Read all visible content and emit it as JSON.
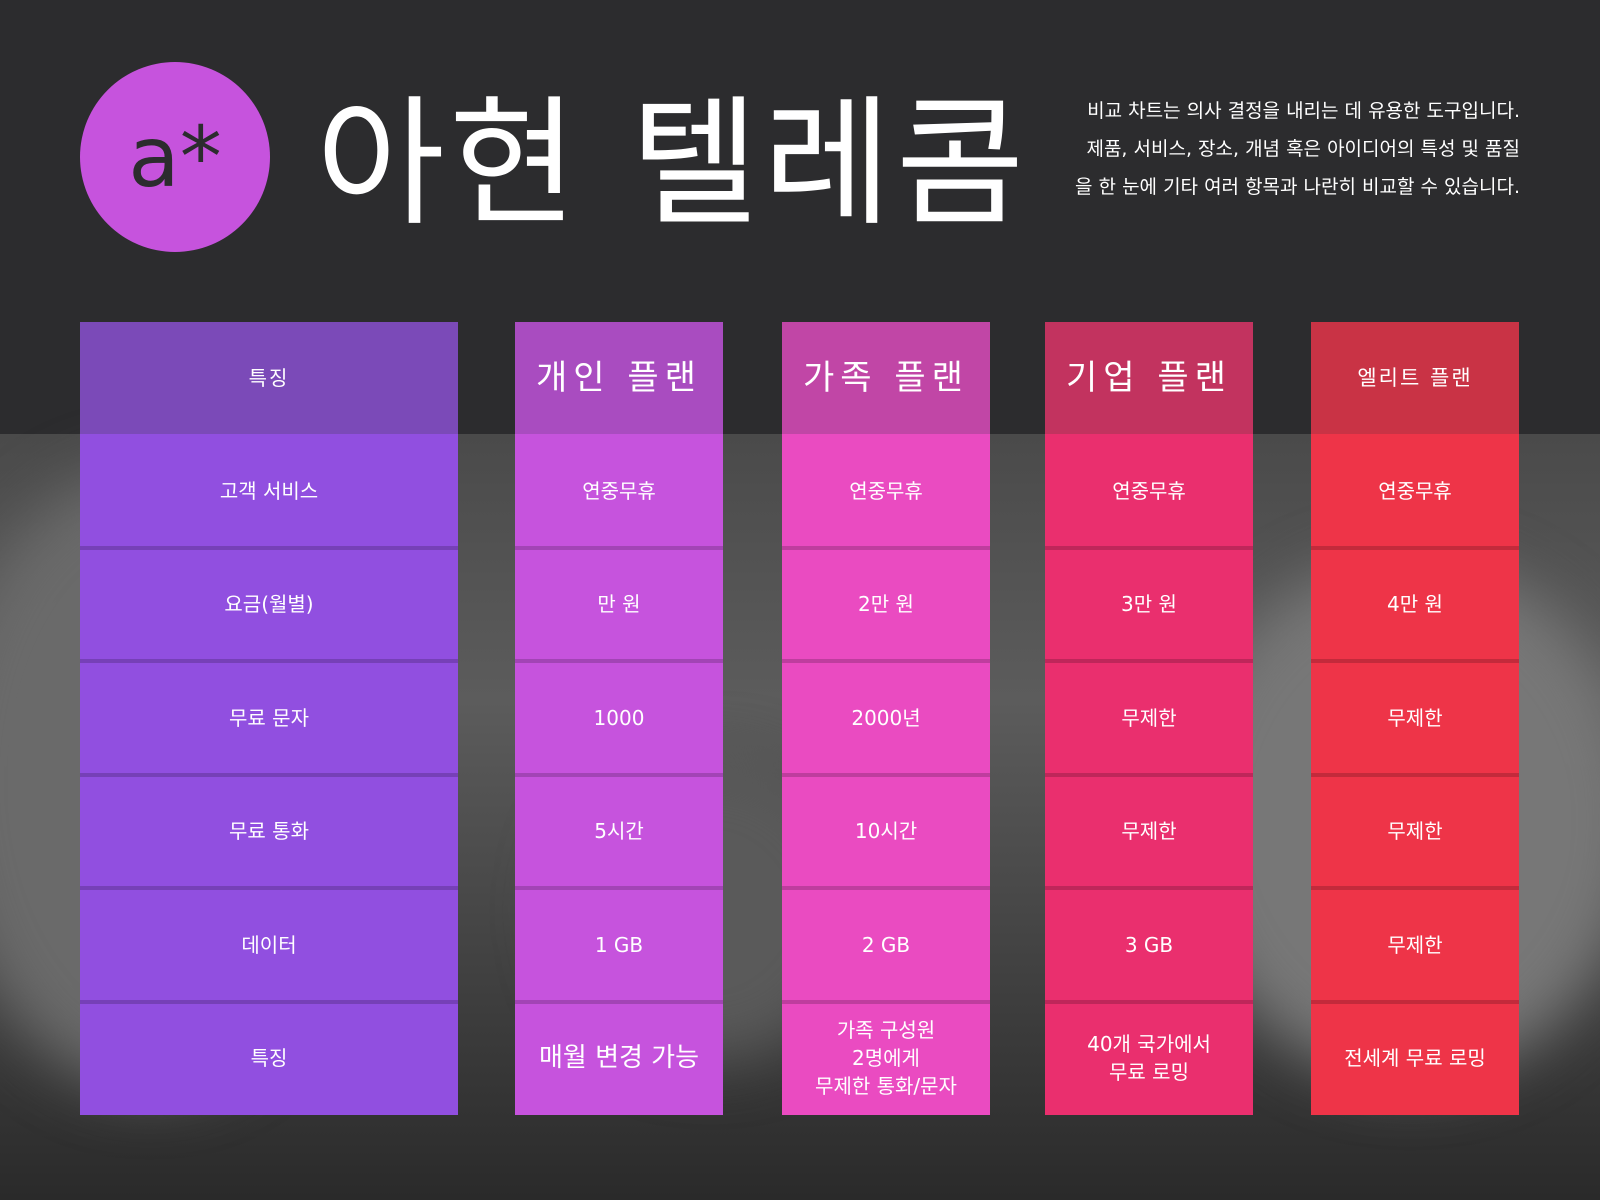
{
  "header": {
    "logo": "a*",
    "title": "아현 텔레콤",
    "description": [
      "비교 차트는 의사 결정을 내리는 데 유용한 도구입니다.",
      "제품, 서비스, 장소, 개념 혹은 아이디어의 특성 및 품질",
      "을 한 눈에 기타 여러 항목과 나란히 비교할 수 있습니다."
    ]
  },
  "table": {
    "columns": [
      {
        "header": "특징",
        "cells": [
          "고객 서비스",
          "요금(월별)",
          "무료 문자",
          "무료 통화",
          "데이터",
          "특징"
        ]
      },
      {
        "header": "개인 플랜",
        "cells": [
          "연중무휴",
          "만 원",
          "1000",
          "5시간",
          "1 GB",
          "매월 변경 가능"
        ]
      },
      {
        "header": "가족 플랜",
        "cells": [
          "연중무휴",
          "2만 원",
          "2000년",
          "10시간",
          "2 GB",
          [
            "가족 구성원",
            "2명에게",
            "무제한 통화/문자"
          ]
        ]
      },
      {
        "header": "기업 플랜",
        "cells": [
          "연중무휴",
          "3만 원",
          "무제한",
          "무제한",
          "3 GB",
          [
            "40개 국가에서",
            "무료 로밍"
          ]
        ]
      },
      {
        "header": "엘리트 플랜",
        "cells": [
          "연중무휴",
          "4만 원",
          "무제한",
          "무제한",
          "무제한",
          "전세계 무료 로밍"
        ]
      }
    ]
  }
}
